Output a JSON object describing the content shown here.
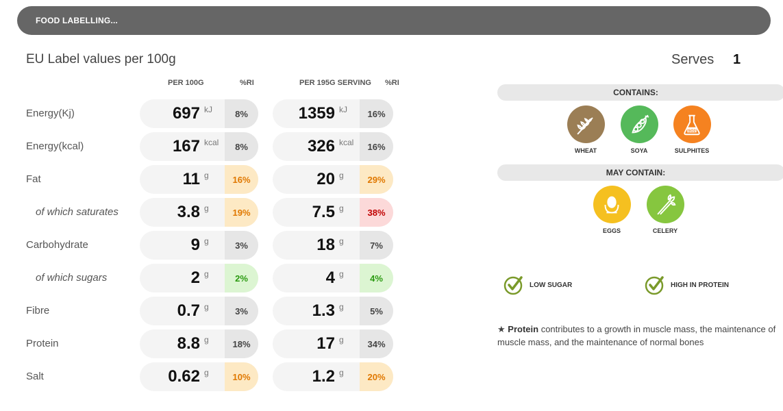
{
  "header": {
    "title": "FOOD LABELLING..."
  },
  "page_title": "EU Label values per 100g",
  "columns": {
    "per100": "PER 100G",
    "ri1": "%RI",
    "serving": "PER 195G SERVING",
    "ri2": "%RI"
  },
  "rows": [
    {
      "label": "Energy(Kj)",
      "sub": false,
      "v100": "697",
      "u100": "kJ",
      "ri100": "8%",
      "lvl100": "grey",
      "vs": "1359",
      "us": "kJ",
      "ris": "16%",
      "lvls": "grey"
    },
    {
      "label": "Energy(kcal)",
      "sub": false,
      "v100": "167",
      "u100": "kcal",
      "ri100": "8%",
      "lvl100": "grey",
      "vs": "326",
      "us": "kcal",
      "ris": "16%",
      "lvls": "grey"
    },
    {
      "label": "Fat",
      "sub": false,
      "v100": "11",
      "u100": "g",
      "ri100": "16%",
      "lvl100": "amber",
      "vs": "20",
      "us": "g",
      "ris": "29%",
      "lvls": "amber"
    },
    {
      "label": "of which saturates",
      "sub": true,
      "v100": "3.8",
      "u100": "g",
      "ri100": "19%",
      "lvl100": "amber",
      "vs": "7.5",
      "us": "g",
      "ris": "38%",
      "lvls": "red"
    },
    {
      "label": "Carbohydrate",
      "sub": false,
      "v100": "9",
      "u100": "g",
      "ri100": "3%",
      "lvl100": "grey",
      "vs": "18",
      "us": "g",
      "ris": "7%",
      "lvls": "grey"
    },
    {
      "label": "of which sugars",
      "sub": true,
      "v100": "2",
      "u100": "g",
      "ri100": "2%",
      "lvl100": "green",
      "vs": "4",
      "us": "g",
      "ris": "4%",
      "lvls": "green"
    },
    {
      "label": "Fibre",
      "sub": false,
      "v100": "0.7",
      "u100": "g",
      "ri100": "3%",
      "lvl100": "grey",
      "vs": "1.3",
      "us": "g",
      "ris": "5%",
      "lvls": "grey"
    },
    {
      "label": "Protein",
      "sub": false,
      "v100": "8.8",
      "u100": "g",
      "ri100": "18%",
      "lvl100": "grey",
      "vs": "17",
      "us": "g",
      "ris": "34%",
      "lvls": "grey"
    },
    {
      "label": "Salt",
      "sub": false,
      "v100": "0.62",
      "u100": "g",
      "ri100": "10%",
      "lvl100": "amber",
      "vs": "1.2",
      "us": "g",
      "ris": "20%",
      "lvls": "amber"
    }
  ],
  "serves": {
    "label": "Serves",
    "value": "1"
  },
  "contains": {
    "title": "CONTAINS:",
    "items": [
      {
        "name": "WHEAT",
        "icon": "wheat-icon",
        "color": "#9b7e55"
      },
      {
        "name": "SOYA",
        "icon": "soya-icon",
        "color": "#55b95a"
      },
      {
        "name": "SULPHITES",
        "icon": "sulphites-icon",
        "color": "#f58220",
        "badge": "SO2"
      }
    ]
  },
  "may_contain": {
    "title": "MAY CONTAIN:",
    "items": [
      {
        "name": "EGGS",
        "icon": "eggs-icon",
        "color": "#f5c020"
      },
      {
        "name": "CELERY",
        "icon": "celery-icon",
        "color": "#86c63f"
      }
    ]
  },
  "claims": [
    {
      "label": "LOW SUGAR",
      "icon": "check-icon",
      "color": "#7a9a2a"
    },
    {
      "label": "HIGH IN PROTEIN",
      "icon": "check-icon",
      "color": "#7a9a2a"
    }
  ],
  "note": {
    "star": "★",
    "bold": "Protein",
    "line1": " contributes to a growth in muscle mass, the maintenance of",
    "line2": "muscle mass, and the maintenance of normal bones"
  }
}
